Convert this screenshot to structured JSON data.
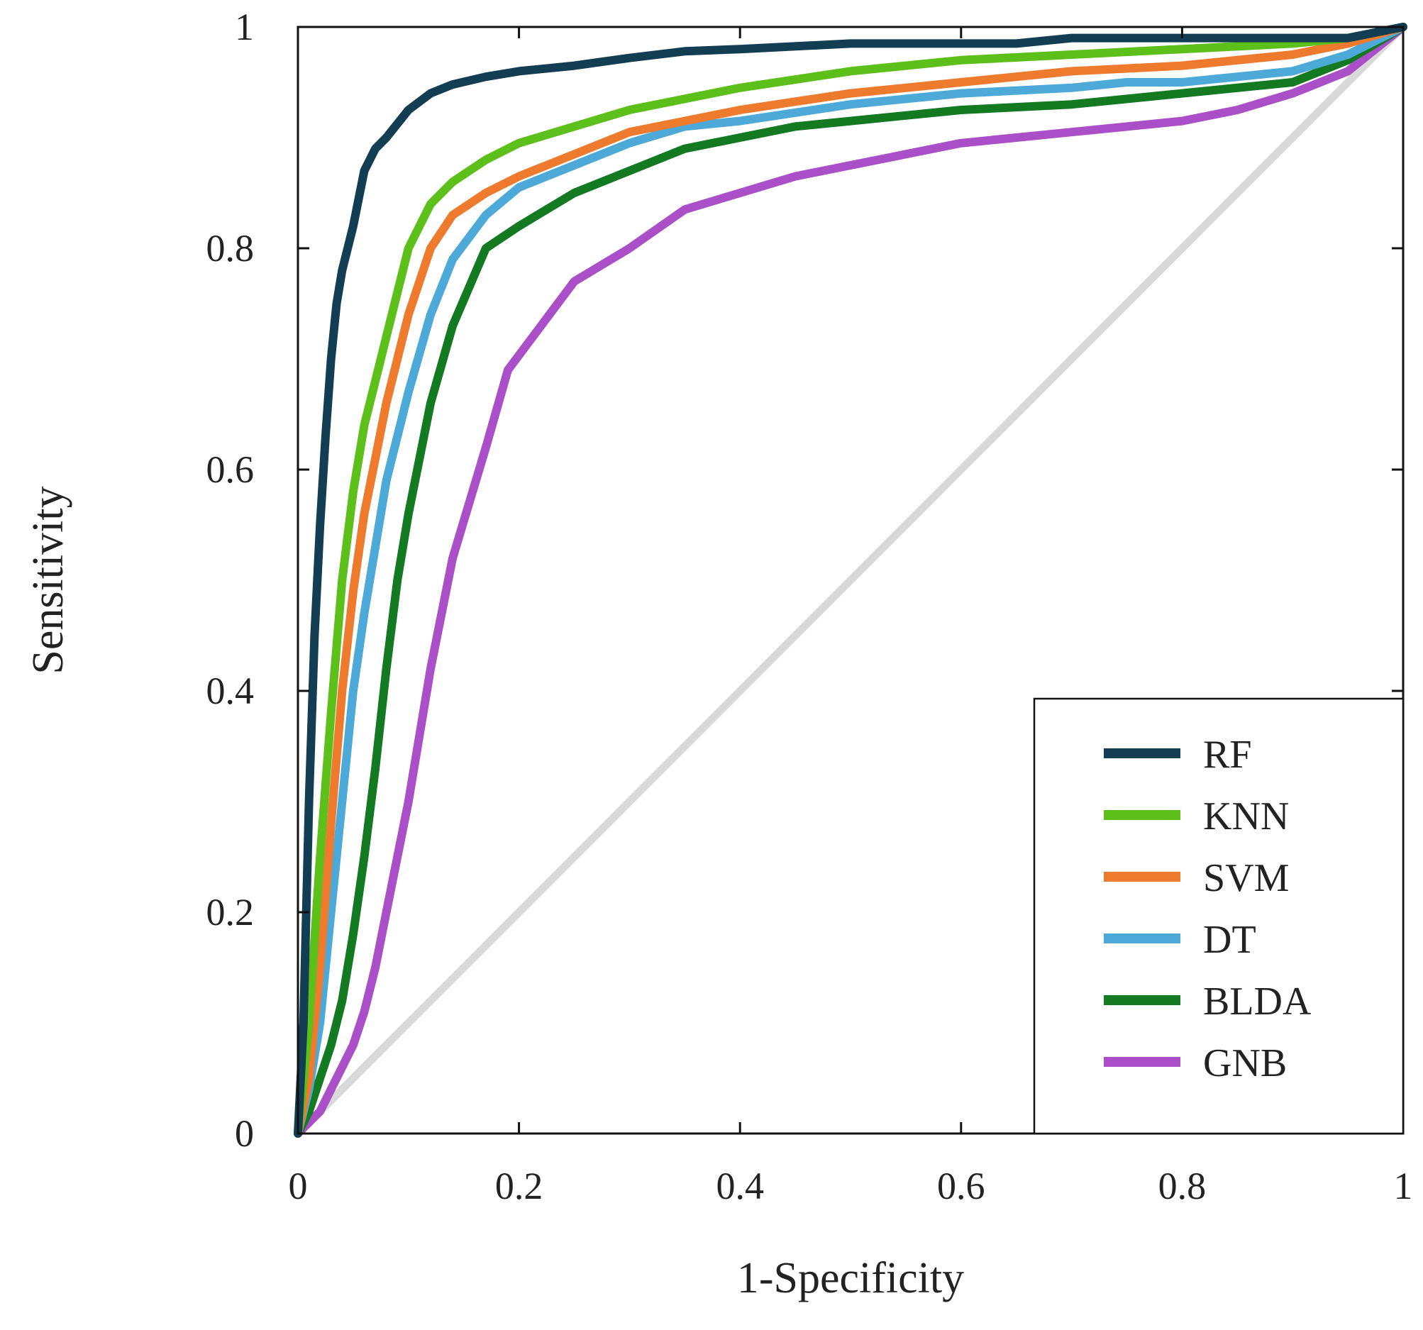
{
  "chart_data": {
    "type": "line",
    "title": "",
    "xlabel": "1-Specificity",
    "ylabel": "Sensitivity",
    "xlim": [
      0,
      1
    ],
    "ylim": [
      0,
      1
    ],
    "xticks": [
      {
        "value": 0,
        "label": "0"
      },
      {
        "value": 0.2,
        "label": "0.2"
      },
      {
        "value": 0.4,
        "label": "0.4"
      },
      {
        "value": 0.6,
        "label": "0.6"
      },
      {
        "value": 0.8,
        "label": "0.8"
      },
      {
        "value": 1,
        "label": "1"
      }
    ],
    "yticks": [
      {
        "value": 0,
        "label": "0"
      },
      {
        "value": 0.2,
        "label": "0.2"
      },
      {
        "value": 0.4,
        "label": "0.4"
      },
      {
        "value": 0.6,
        "label": "0.6"
      },
      {
        "value": 0.8,
        "label": "0.8"
      },
      {
        "value": 1,
        "label": "1"
      }
    ],
    "grid": false,
    "legend_position": "bottom-right",
    "reference_line": {
      "name": "chance",
      "color": "#d9d9d9",
      "x": [
        0,
        1
      ],
      "y": [
        0,
        1
      ]
    },
    "series": [
      {
        "name": "RF",
        "color": "#123d52",
        "x": [
          0,
          0.005,
          0.01,
          0.015,
          0.02,
          0.025,
          0.03,
          0.035,
          0.04,
          0.05,
          0.06,
          0.07,
          0.08,
          0.1,
          0.12,
          0.14,
          0.17,
          0.2,
          0.25,
          0.3,
          0.35,
          0.4,
          0.5,
          0.6,
          0.65,
          0.7,
          0.8,
          0.9,
          0.95,
          1
        ],
        "y": [
          0,
          0.1,
          0.3,
          0.45,
          0.55,
          0.63,
          0.7,
          0.75,
          0.78,
          0.82,
          0.87,
          0.89,
          0.9,
          0.925,
          0.94,
          0.948,
          0.955,
          0.96,
          0.965,
          0.972,
          0.978,
          0.98,
          0.985,
          0.985,
          0.985,
          0.99,
          0.99,
          0.99,
          0.99,
          1
        ]
      },
      {
        "name": "KNN",
        "color": "#5cbf1a",
        "x": [
          0,
          0.01,
          0.02,
          0.03,
          0.04,
          0.05,
          0.06,
          0.07,
          0.08,
          0.1,
          0.12,
          0.14,
          0.17,
          0.2,
          0.25,
          0.3,
          0.35,
          0.4,
          0.5,
          0.6,
          0.7,
          0.8,
          0.9,
          0.95,
          1
        ],
        "y": [
          0,
          0.1,
          0.25,
          0.38,
          0.5,
          0.58,
          0.64,
          0.68,
          0.72,
          0.8,
          0.84,
          0.86,
          0.88,
          0.895,
          0.91,
          0.925,
          0.935,
          0.945,
          0.96,
          0.97,
          0.975,
          0.98,
          0.985,
          0.99,
          1
        ]
      },
      {
        "name": "SVM",
        "color": "#ee7a2e",
        "x": [
          0,
          0.01,
          0.02,
          0.03,
          0.04,
          0.05,
          0.06,
          0.07,
          0.08,
          0.1,
          0.12,
          0.14,
          0.17,
          0.2,
          0.25,
          0.3,
          0.35,
          0.4,
          0.5,
          0.6,
          0.7,
          0.8,
          0.9,
          0.95,
          1
        ],
        "y": [
          0,
          0.05,
          0.15,
          0.28,
          0.4,
          0.49,
          0.56,
          0.61,
          0.66,
          0.74,
          0.8,
          0.83,
          0.85,
          0.865,
          0.885,
          0.905,
          0.915,
          0.925,
          0.94,
          0.95,
          0.96,
          0.965,
          0.975,
          0.985,
          1
        ]
      },
      {
        "name": "DT",
        "color": "#4da9d8",
        "x": [
          0,
          0.01,
          0.02,
          0.03,
          0.04,
          0.05,
          0.06,
          0.07,
          0.08,
          0.1,
          0.12,
          0.14,
          0.17,
          0.2,
          0.25,
          0.3,
          0.35,
          0.4,
          0.5,
          0.6,
          0.7,
          0.75,
          0.8,
          0.9,
          0.95,
          1
        ],
        "y": [
          0,
          0.04,
          0.1,
          0.2,
          0.3,
          0.4,
          0.47,
          0.53,
          0.59,
          0.67,
          0.74,
          0.79,
          0.83,
          0.855,
          0.875,
          0.895,
          0.91,
          0.915,
          0.93,
          0.94,
          0.945,
          0.95,
          0.95,
          0.96,
          0.975,
          1
        ]
      },
      {
        "name": "BLDA",
        "color": "#137a22",
        "x": [
          0,
          0.01,
          0.02,
          0.03,
          0.04,
          0.05,
          0.06,
          0.07,
          0.08,
          0.09,
          0.1,
          0.12,
          0.14,
          0.17,
          0.2,
          0.25,
          0.3,
          0.35,
          0.4,
          0.45,
          0.5,
          0.6,
          0.7,
          0.8,
          0.9,
          0.95,
          1
        ],
        "y": [
          0,
          0.02,
          0.05,
          0.08,
          0.12,
          0.18,
          0.25,
          0.33,
          0.42,
          0.5,
          0.56,
          0.66,
          0.73,
          0.8,
          0.82,
          0.85,
          0.87,
          0.89,
          0.9,
          0.91,
          0.915,
          0.925,
          0.93,
          0.94,
          0.95,
          0.97,
          1
        ]
      },
      {
        "name": "GNB",
        "color": "#aa4fc8",
        "x": [
          0,
          0.01,
          0.02,
          0.03,
          0.04,
          0.05,
          0.06,
          0.07,
          0.08,
          0.1,
          0.12,
          0.14,
          0.17,
          0.19,
          0.22,
          0.25,
          0.3,
          0.35,
          0.4,
          0.45,
          0.5,
          0.55,
          0.6,
          0.7,
          0.8,
          0.85,
          0.9,
          0.95,
          1
        ],
        "y": [
          0,
          0.01,
          0.02,
          0.04,
          0.06,
          0.08,
          0.11,
          0.15,
          0.2,
          0.3,
          0.42,
          0.52,
          0.62,
          0.69,
          0.73,
          0.77,
          0.8,
          0.835,
          0.85,
          0.865,
          0.875,
          0.885,
          0.895,
          0.905,
          0.915,
          0.925,
          0.94,
          0.96,
          1
        ]
      }
    ]
  }
}
